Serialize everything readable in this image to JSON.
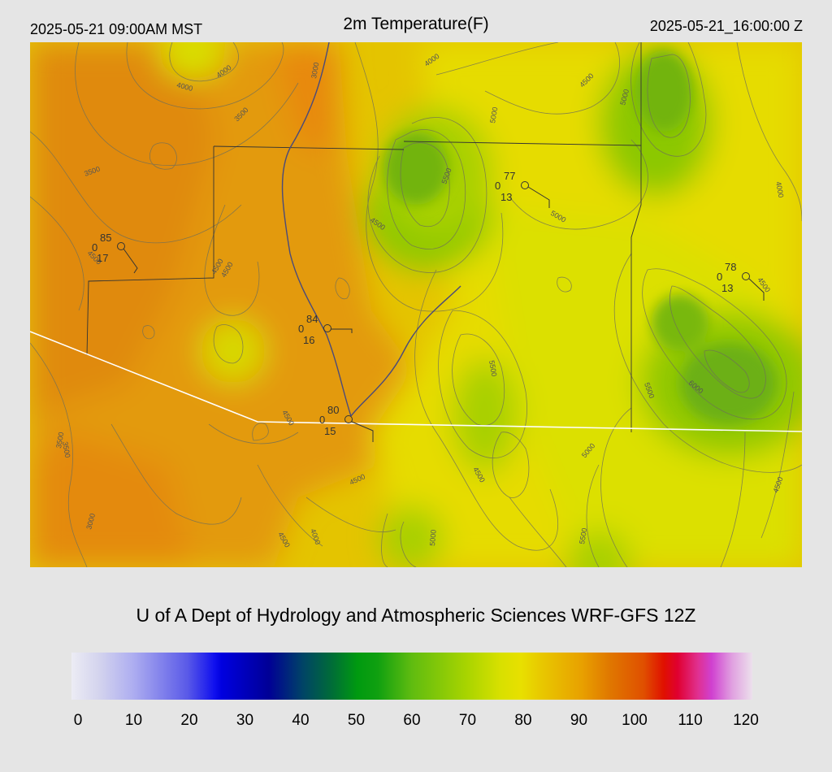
{
  "header": {
    "valid_local": "2025-05-21 09:00AM MST",
    "title": "2m Temperature(F)",
    "valid_utc": "2025-05-21_16:00:00 Z"
  },
  "map": {
    "contour_labels": [
      "4000",
      "3000",
      "4000",
      "4500",
      "3500",
      "3500",
      "4000",
      "4500",
      "5500",
      "5000",
      "4000",
      "5000",
      "5000",
      "4500",
      "4500",
      "4500",
      "3500",
      "4500",
      "5500",
      "5500",
      "6000",
      "4500",
      "4500",
      "5000",
      "4500",
      "3500",
      "3000",
      "4500",
      "4000",
      "5000",
      "5500",
      "4500"
    ],
    "stations": [
      {
        "temp": "85",
        "code": "0",
        "dew": "17"
      },
      {
        "temp": "77",
        "code": "0",
        "dew": "13"
      },
      {
        "temp": "78",
        "code": "0",
        "dew": "13"
      },
      {
        "temp": "84",
        "code": "0",
        "dew": "16"
      },
      {
        "temp": "80",
        "code": "0",
        "dew": "15"
      }
    ]
  },
  "footer": {
    "credit": "U of A Dept of Hydrology and Atmospheric Sciences WRF-GFS 12Z"
  },
  "colorbar": {
    "ticks": [
      "0",
      "10",
      "20",
      "30",
      "40",
      "50",
      "60",
      "70",
      "80",
      "90",
      "100",
      "110",
      "120"
    ]
  },
  "colors": {
    "warm": "#e39a10",
    "mid": "#e8d000",
    "cool": "#8cc800",
    "coolest": "#5aa818",
    "boundary": "#ffffff"
  }
}
